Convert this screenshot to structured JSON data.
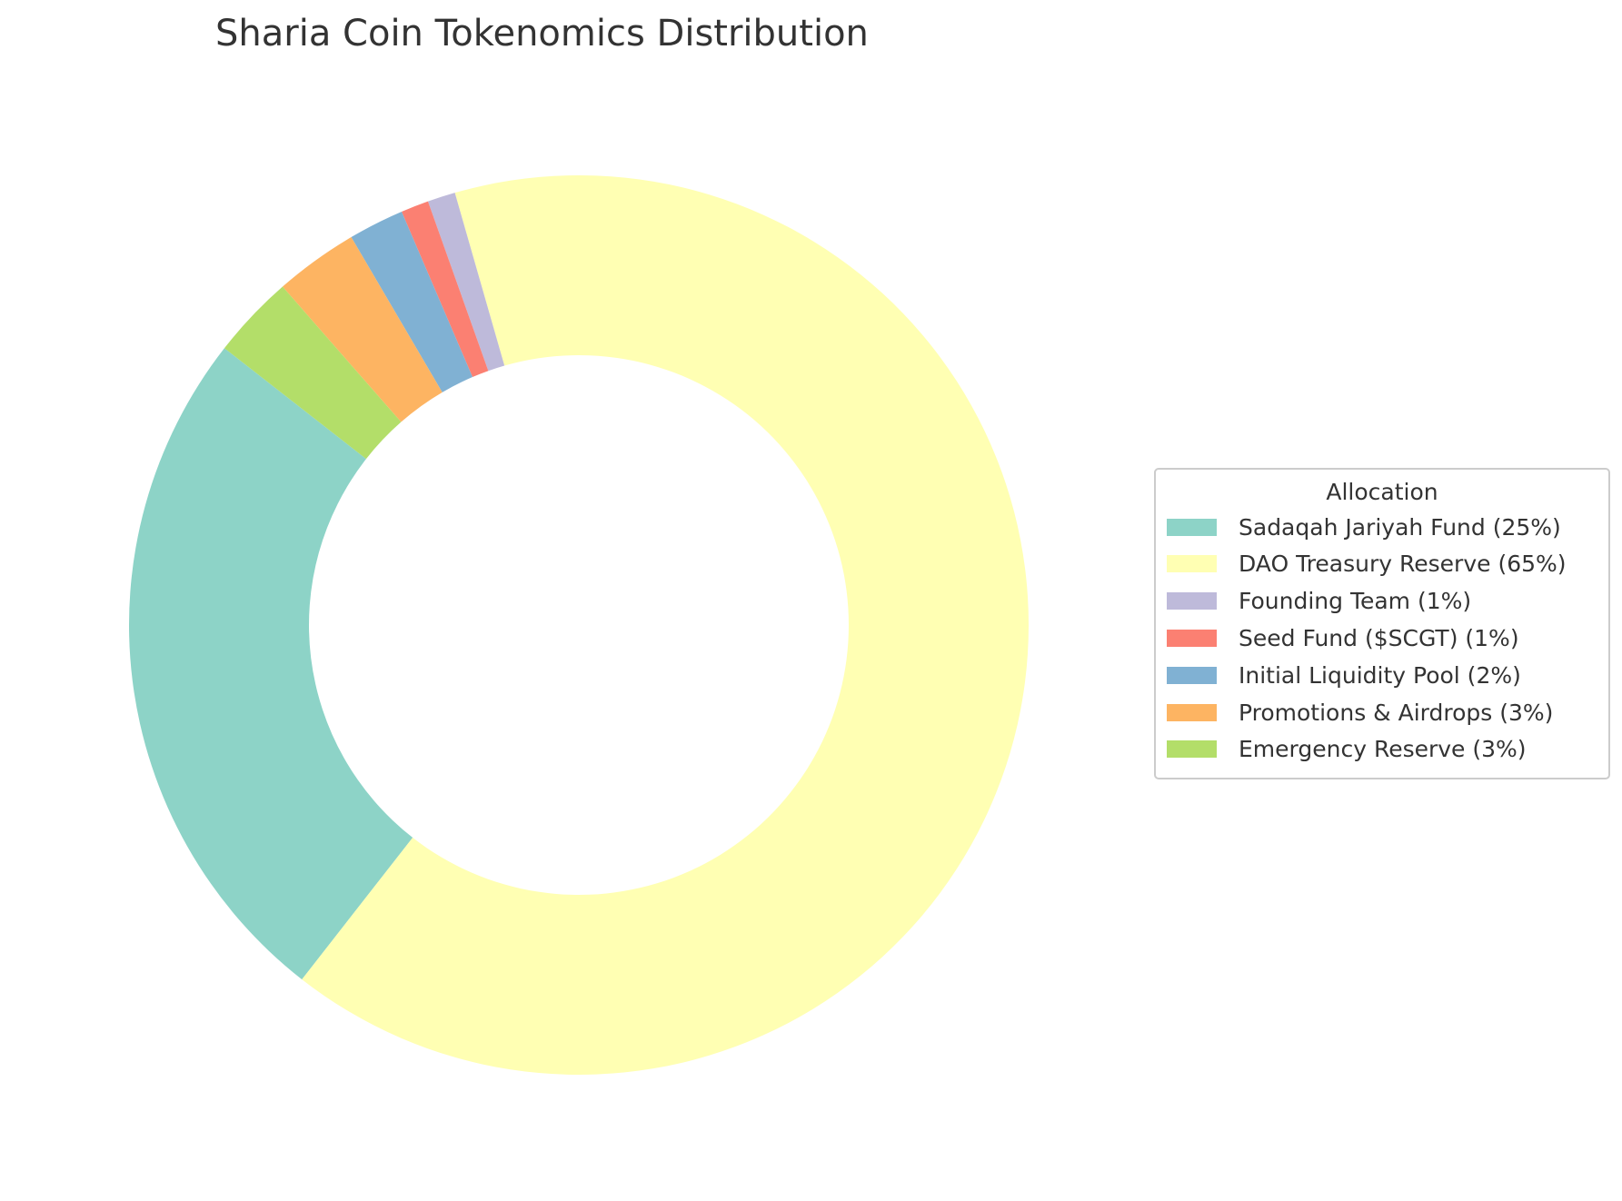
{
  "chart_data": {
    "type": "pie",
    "style": "donut",
    "title": "Sharia Coin Tokenomics Distribution",
    "categories": [
      "Sadaqah Jariyah Fund (25%)",
      "DAO Treasury Reserve (65%)",
      "Founding Team (1%)",
      "Seed Fund ($SCGT) (1%)",
      "Initial Liquidity Pool (2%)",
      "Promotions & Airdrops (3%)",
      "Emergency Reserve (3%)"
    ],
    "values": [
      25,
      65,
      1,
      1,
      2,
      3,
      3
    ],
    "colors": [
      "#8dd3c7",
      "#ffffb3",
      "#bebada",
      "#fb8072",
      "#80b1d3",
      "#fdb462",
      "#b3de69"
    ],
    "legend": {
      "title": "Allocation",
      "placement": "right"
    }
  }
}
